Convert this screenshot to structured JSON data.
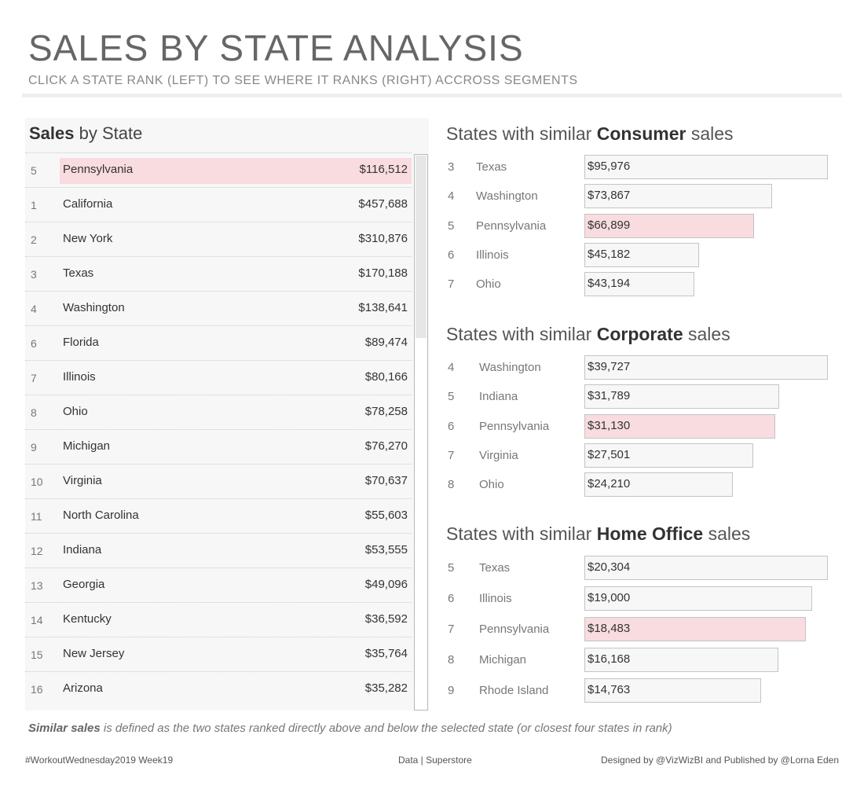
{
  "header": {
    "title": "SALES BY STATE ANALYSIS",
    "subtitle": "CLICK A STATE RANK (LEFT) TO SEE WHERE IT RANKS (RIGHT) ACCROSS SEGMENTS"
  },
  "colors": {
    "highlight": "#f9dcdf",
    "bar_fill": "#f7f7f7",
    "bar_border": "#c4c4c4",
    "title_gray": "#666666"
  },
  "left_panel": {
    "title_bold": "Sales",
    "title_rest": " by State",
    "selected_state": "Pennsylvania"
  },
  "footnote": {
    "bold": "Similar sales",
    "text": "  is defined as the two states ranked directly above and below the selected state (or closest four states in rank)"
  },
  "footer": {
    "left": "#WorkoutWednesday2019 Week19",
    "center": "Data | Superstore",
    "right": "Designed by @VizWizBI and Published by @Lorna Eden"
  },
  "chart_data": [
    {
      "type": "table",
      "title": "Sales by State",
      "columns": [
        "rank",
        "state",
        "sales"
      ],
      "rows": [
        {
          "rank": "5",
          "state": "Pennsylvania",
          "sales": "$116,512",
          "selected": true
        },
        {
          "rank": "1",
          "state": "California",
          "sales": "$457,688"
        },
        {
          "rank": "2",
          "state": "New York",
          "sales": "$310,876"
        },
        {
          "rank": "3",
          "state": "Texas",
          "sales": "$170,188"
        },
        {
          "rank": "4",
          "state": "Washington",
          "sales": "$138,641"
        },
        {
          "rank": "6",
          "state": "Florida",
          "sales": "$89,474"
        },
        {
          "rank": "7",
          "state": "Illinois",
          "sales": "$80,166"
        },
        {
          "rank": "8",
          "state": "Ohio",
          "sales": "$78,258"
        },
        {
          "rank": "9",
          "state": "Michigan",
          "sales": "$76,270"
        },
        {
          "rank": "10",
          "state": "Virginia",
          "sales": "$70,637"
        },
        {
          "rank": "11",
          "state": "North Carolina",
          "sales": "$55,603"
        },
        {
          "rank": "12",
          "state": "Indiana",
          "sales": "$53,555"
        },
        {
          "rank": "13",
          "state": "Georgia",
          "sales": "$49,096"
        },
        {
          "rank": "14",
          "state": "Kentucky",
          "sales": "$36,592"
        },
        {
          "rank": "15",
          "state": "New Jersey",
          "sales": "$35,764"
        },
        {
          "rank": "16",
          "state": "Arizona",
          "sales": "$35,282"
        }
      ]
    },
    {
      "type": "bar",
      "orientation": "horizontal",
      "segment": "Consumer",
      "title_prefix": "States with similar ",
      "title_bold": "Consumer",
      "title_suffix": " sales",
      "x_max": 95976,
      "rows": [
        {
          "rank": "3",
          "state": "Texas",
          "value": 95976,
          "label": "$95,976"
        },
        {
          "rank": "4",
          "state": "Washington",
          "value": 73867,
          "label": "$73,867"
        },
        {
          "rank": "5",
          "state": "Pennsylvania",
          "value": 66899,
          "label": "$66,899",
          "selected": true
        },
        {
          "rank": "6",
          "state": "Illinois",
          "value": 45182,
          "label": "$45,182"
        },
        {
          "rank": "7",
          "state": "Ohio",
          "value": 43194,
          "label": "$43,194"
        }
      ]
    },
    {
      "type": "bar",
      "orientation": "horizontal",
      "segment": "Corporate",
      "title_prefix": "States with similar ",
      "title_bold": "Corporate",
      "title_suffix": " sales",
      "x_max": 39727,
      "rows": [
        {
          "rank": "4",
          "state": "Washington",
          "value": 39727,
          "label": "$39,727"
        },
        {
          "rank": "5",
          "state": "Indiana",
          "value": 31789,
          "label": "$31,789"
        },
        {
          "rank": "6",
          "state": "Pennsylvania",
          "value": 31130,
          "label": "$31,130",
          "selected": true
        },
        {
          "rank": "7",
          "state": "Virginia",
          "value": 27501,
          "label": "$27,501"
        },
        {
          "rank": "8",
          "state": "Ohio",
          "value": 24210,
          "label": "$24,210"
        }
      ]
    },
    {
      "type": "bar",
      "orientation": "horizontal",
      "segment": "Home Office",
      "title_prefix": "States with similar ",
      "title_bold": "Home Office",
      "title_suffix": " sales",
      "x_max": 20304,
      "rows": [
        {
          "rank": "5",
          "state": "Texas",
          "value": 20304,
          "label": "$20,304"
        },
        {
          "rank": "6",
          "state": "Illinois",
          "value": 19000,
          "label": "$19,000"
        },
        {
          "rank": "7",
          "state": "Pennsylvania",
          "value": 18483,
          "label": "$18,483",
          "selected": true
        },
        {
          "rank": "8",
          "state": "Michigan",
          "value": 16168,
          "label": "$16,168"
        },
        {
          "rank": "9",
          "state": "Rhode Island",
          "value": 14763,
          "label": "$14,763"
        }
      ]
    }
  ]
}
